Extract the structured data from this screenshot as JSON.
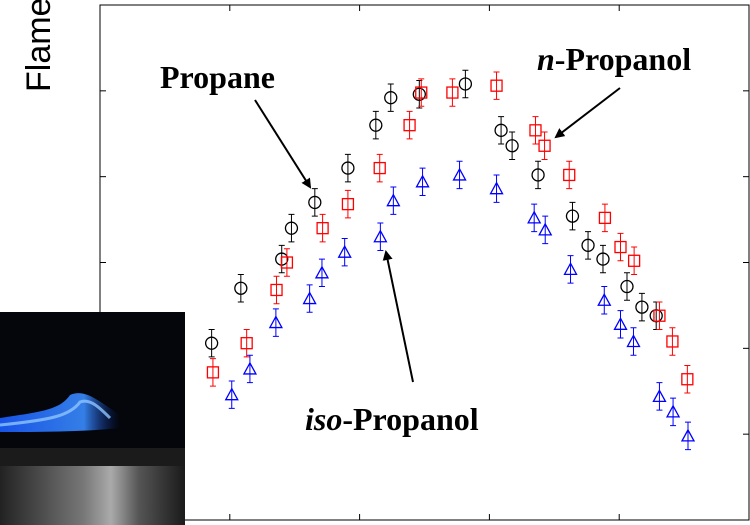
{
  "chart_data": {
    "type": "scatter",
    "ylabel": "Flame",
    "xlim": [
      0.6,
      1.6
    ],
    "xticks": [
      0.8,
      1.0,
      1.2,
      1.4
    ],
    "ylim": [
      20,
      50
    ],
    "yticks": [
      25,
      30,
      35,
      40,
      45
    ],
    "series": [
      {
        "color": "#000000",
        "marker": "circle",
        "error": 0.8,
        "x": [
          0.772,
          0.817,
          0.88,
          0.895,
          0.931,
          0.982,
          1.025,
          1.048,
          1.092,
          1.163,
          1.218,
          1.235,
          1.275,
          1.328,
          1.352,
          1.375,
          1.412,
          1.435,
          1.457
        ],
        "values": [
          30.3,
          33.5,
          35.2,
          37.0,
          38.5,
          40.5,
          43.0,
          44.6,
          44.8,
          45.4,
          42.7,
          41.8,
          40.1,
          37.7,
          36.0,
          35.2,
          33.6,
          32.4,
          31.9
        ]
      },
      {
        "color": "#ff0000",
        "marker": "square",
        "error": 0.8,
        "x": [
          0.774,
          0.826,
          0.872,
          0.888,
          0.943,
          0.982,
          1.031,
          1.077,
          1.095,
          1.143,
          1.211,
          1.271,
          1.285,
          1.323,
          1.378,
          1.402,
          1.423,
          1.462,
          1.482,
          1.505
        ],
        "values": [
          28.6,
          30.3,
          33.4,
          35.0,
          37.0,
          38.4,
          40.5,
          43.0,
          44.9,
          44.9,
          45.3,
          42.7,
          41.8,
          40.1,
          37.6,
          35.9,
          35.1,
          31.9,
          30.4,
          28.2
        ]
      },
      {
        "color": "#0000ff",
        "marker": "triangle",
        "error": 0.8,
        "x": [
          0.803,
          0.831,
          0.871,
          0.923,
          0.942,
          0.977,
          1.032,
          1.052,
          1.097,
          1.154,
          1.211,
          1.269,
          1.286,
          1.325,
          1.377,
          1.402,
          1.422,
          1.462,
          1.483,
          1.506
        ],
        "values": [
          27.3,
          28.8,
          31.5,
          32.9,
          34.4,
          35.6,
          36.5,
          38.6,
          39.7,
          40.1,
          39.3,
          37.6,
          36.9,
          34.6,
          32.8,
          31.4,
          30.4,
          27.2,
          26.3,
          24.9
        ]
      }
    ],
    "annotations": [
      {
        "text": "Propane"
      },
      {
        "italic": "n",
        "text": "-Propanol"
      },
      {
        "italic": "iso",
        "text": "-Propanol"
      }
    ]
  }
}
